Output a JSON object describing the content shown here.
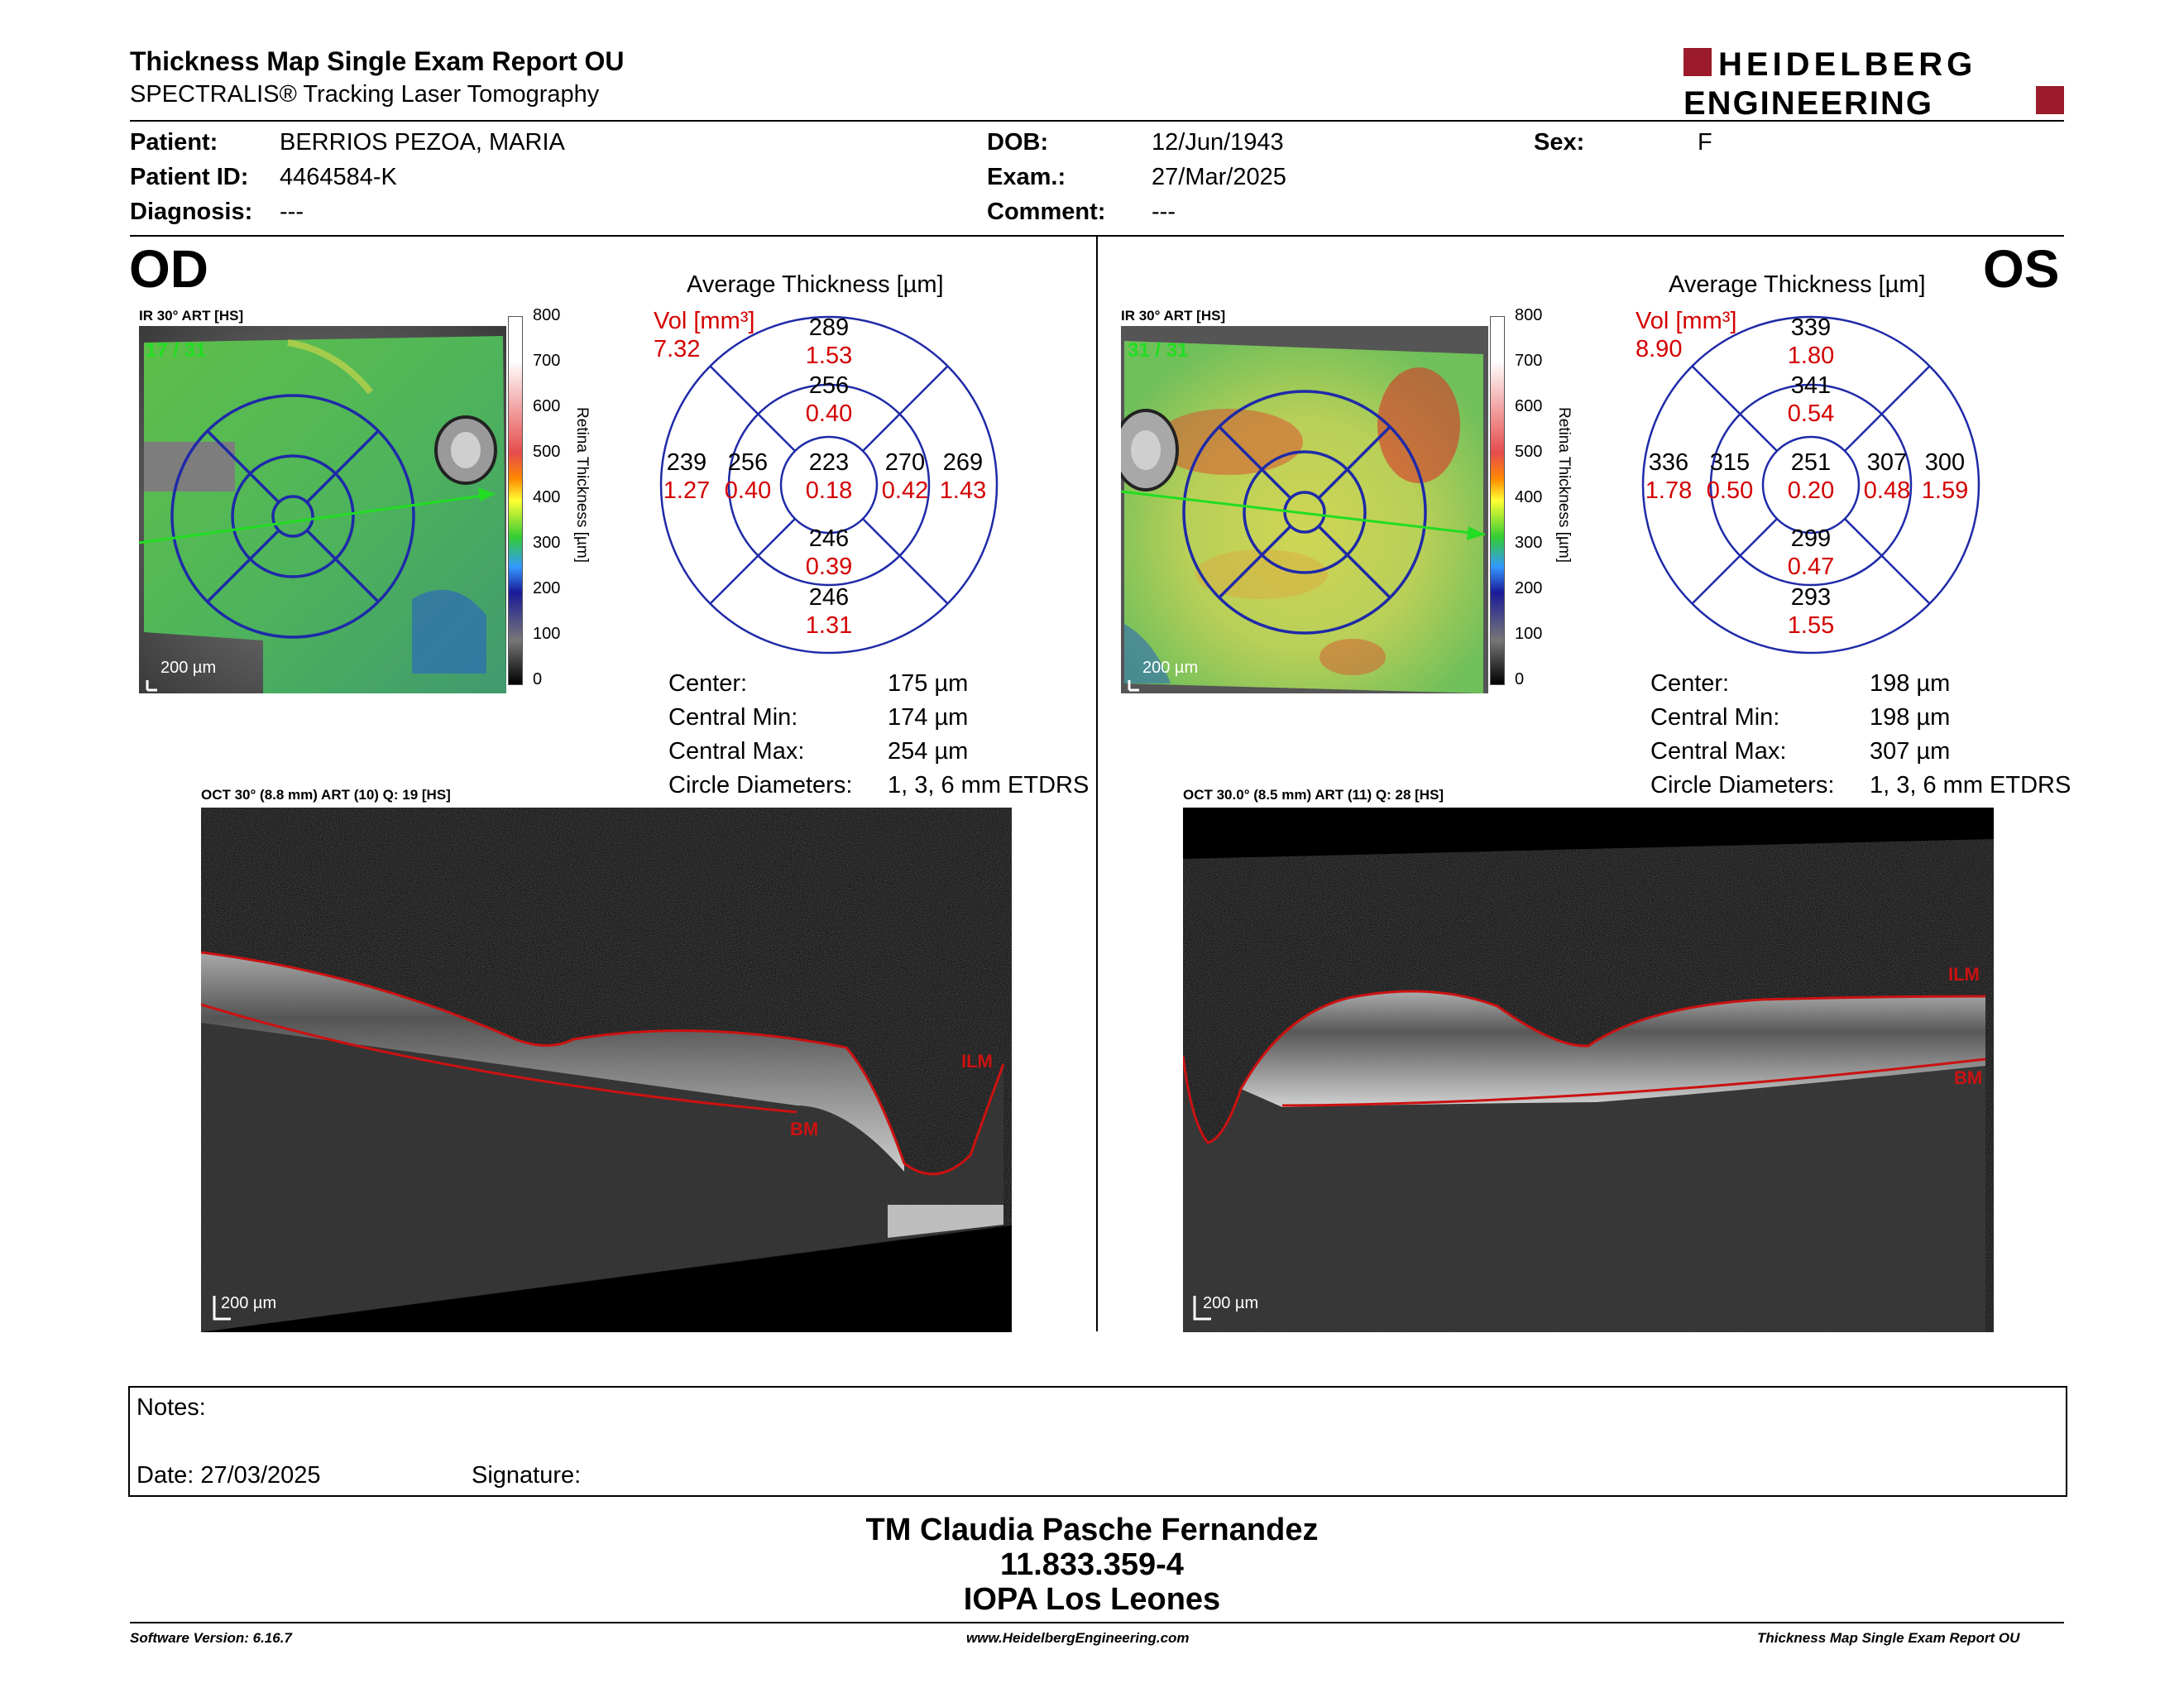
{
  "header": {
    "title": "Thickness Map Single Exam Report OU",
    "subtitle": "SPECTRALIS® Tracking Laser Tomography",
    "logo_line1": "HEIDELBERG",
    "logo_line2": "ENGINEERING"
  },
  "patient": {
    "patient_label": "Patient:",
    "patient_value": "BERRIOS PEZOA, MARIA",
    "id_label": "Patient ID:",
    "id_value": "4464584-K",
    "diagnosis_label": "Diagnosis:",
    "diagnosis_value": "---",
    "dob_label": "DOB:",
    "dob_value": "12/Jun/1943",
    "exam_label": "Exam.:",
    "exam_value": "27/Mar/2025",
    "comment_label": "Comment:",
    "comment_value": "---",
    "sex_label": "Sex:",
    "sex_value": "F"
  },
  "colors": {
    "ring": "#1e2aa8",
    "red_text": "#d40000",
    "scan_line": "#22dd22",
    "logo_red": "#9b1b2a"
  },
  "scale_ticks": [
    "800",
    "700",
    "600",
    "500",
    "400",
    "300",
    "200",
    "100",
    "0"
  ],
  "scale_label": "Retina Thickness [µm]",
  "od": {
    "eye": "OD",
    "ir_label": "IR 30° ART [HS]",
    "frames": "17 / 31",
    "scale_bar": "200 µm",
    "avg_title": "Average Thickness [µm]",
    "vol_label": "Vol [mm³]",
    "vol_value": "7.32",
    "sectors": {
      "outer_sup": [
        "289",
        "1.53"
      ],
      "inner_sup": [
        "256",
        "0.40"
      ],
      "center": [
        "223",
        "0.18"
      ],
      "inner_inf": [
        "246",
        "0.39"
      ],
      "outer_inf": [
        "246",
        "1.31"
      ],
      "outer_left": [
        "239",
        "1.27"
      ],
      "inner_left": [
        "256",
        "0.40"
      ],
      "inner_right": [
        "270",
        "0.42"
      ],
      "outer_right": [
        "269",
        "1.43"
      ]
    },
    "stats": [
      {
        "label": "Center:",
        "value": "175 µm"
      },
      {
        "label": "Central Min:",
        "value": "174 µm"
      },
      {
        "label": "Central Max:",
        "value": "254 µm"
      },
      {
        "label": "Circle Diameters:",
        "value": "1, 3, 6 mm ETDRS"
      }
    ],
    "oct_label": "OCT 30° (8.8 mm) ART (10) Q: 19 [HS]",
    "oct_scale": "200 µm",
    "ilm": "ILM",
    "bm": "BM"
  },
  "os": {
    "eye": "OS",
    "ir_label": "IR 30° ART [HS]",
    "frames": "31 / 31",
    "scale_bar": "200 µm",
    "avg_title": "Average Thickness [µm]",
    "vol_label": "Vol [mm³]",
    "vol_value": "8.90",
    "sectors": {
      "outer_sup": [
        "339",
        "1.80"
      ],
      "inner_sup": [
        "341",
        "0.54"
      ],
      "center": [
        "251",
        "0.20"
      ],
      "inner_inf": [
        "299",
        "0.47"
      ],
      "outer_inf": [
        "293",
        "1.55"
      ],
      "outer_left": [
        "336",
        "1.78"
      ],
      "inner_left": [
        "315",
        "0.50"
      ],
      "inner_right": [
        "307",
        "0.48"
      ],
      "outer_right": [
        "300",
        "1.59"
      ]
    },
    "stats": [
      {
        "label": "Center:",
        "value": "198 µm"
      },
      {
        "label": "Central Min:",
        "value": "198 µm"
      },
      {
        "label": "Central Max:",
        "value": "307 µm"
      },
      {
        "label": "Circle Diameters:",
        "value": "1, 3, 6 mm ETDRS"
      }
    ],
    "oct_label": "OCT 30.0° (8.5 mm) ART (11) Q: 28 [HS]",
    "oct_scale": "200 µm",
    "ilm": "ILM",
    "bm": "BM"
  },
  "notes": {
    "notes_label": "Notes:",
    "date_label": "Date: 27/03/2025",
    "signature_label": "Signature:"
  },
  "signature_block": {
    "line1": "TM Claudia Pasche Fernandez",
    "line2": "11.833.359-4",
    "line3": "IOPA Los Leones"
  },
  "footer": {
    "software": "Software Version: 6.16.7",
    "website": "www.HeidelbergEngineering.com",
    "report": "Thickness Map Single Exam Report OU"
  }
}
